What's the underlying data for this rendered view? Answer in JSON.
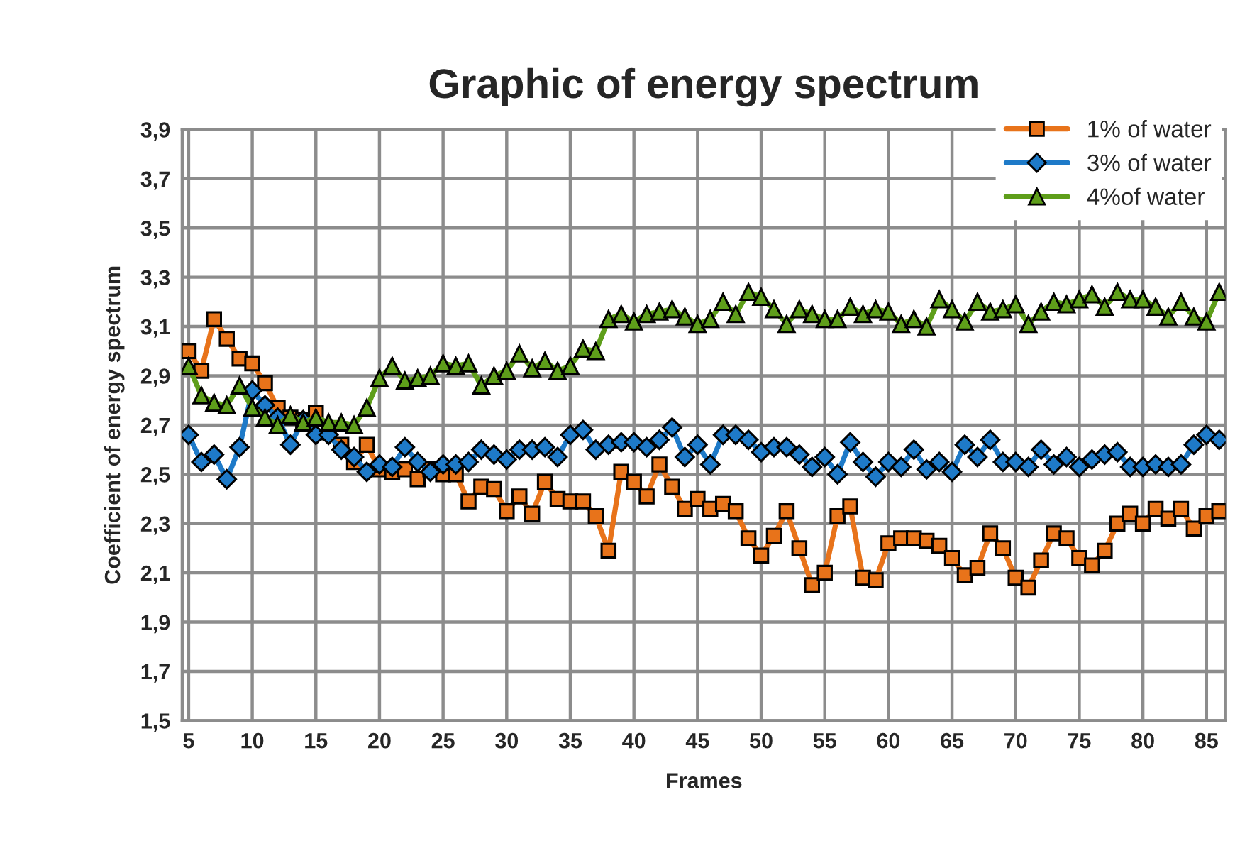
{
  "chart_data": {
    "type": "line",
    "title": "Graphic of energy spectrum",
    "xlabel": "Frames",
    "ylabel": "Coefficient of energy spectrum",
    "x": [
      5,
      6,
      7,
      8,
      9,
      10,
      11,
      12,
      13,
      14,
      15,
      16,
      17,
      18,
      19,
      20,
      21,
      22,
      23,
      24,
      25,
      26,
      27,
      28,
      29,
      30,
      31,
      32,
      33,
      34,
      35,
      36,
      37,
      38,
      39,
      40,
      41,
      42,
      43,
      44,
      45,
      46,
      47,
      48,
      49,
      50,
      51,
      52,
      53,
      54,
      55,
      56,
      57,
      58,
      59,
      60,
      61,
      62,
      63,
      64,
      65,
      66,
      67,
      68,
      69,
      70,
      71,
      72,
      73,
      74,
      75,
      76,
      77,
      78,
      79,
      80,
      81,
      82,
      83,
      84,
      85,
      86
    ],
    "series": [
      {
        "name": "1% of water",
        "color": "#e8731a",
        "marker": "square",
        "values": [
          3.0,
          2.92,
          3.13,
          3.05,
          2.97,
          2.95,
          2.87,
          2.77,
          2.73,
          2.72,
          2.75,
          2.67,
          2.62,
          2.55,
          2.62,
          2.52,
          2.51,
          2.52,
          2.48,
          2.52,
          2.5,
          2.5,
          2.39,
          2.45,
          2.44,
          2.35,
          2.41,
          2.34,
          2.47,
          2.4,
          2.39,
          2.39,
          2.33,
          2.19,
          2.51,
          2.47,
          2.41,
          2.54,
          2.45,
          2.36,
          2.4,
          2.36,
          2.38,
          2.35,
          2.24,
          2.17,
          2.25,
          2.35,
          2.2,
          2.05,
          2.1,
          2.33,
          2.37,
          2.08,
          2.07,
          2.22,
          2.24,
          2.24,
          2.23,
          2.21,
          2.16,
          2.09,
          2.12,
          2.26,
          2.2,
          2.08,
          2.04,
          2.15,
          2.26,
          2.24,
          2.16,
          2.13,
          2.19,
          2.3,
          2.34,
          2.3,
          2.36,
          2.32,
          2.36,
          2.28,
          2.33,
          2.35
        ]
      },
      {
        "name": "3% of water",
        "color": "#1e7ac8",
        "marker": "diamond",
        "values": [
          2.66,
          2.55,
          2.58,
          2.48,
          2.61,
          2.84,
          2.78,
          2.73,
          2.62,
          2.72,
          2.66,
          2.66,
          2.6,
          2.57,
          2.51,
          2.54,
          2.53,
          2.61,
          2.55,
          2.51,
          2.54,
          2.54,
          2.55,
          2.6,
          2.58,
          2.56,
          2.6,
          2.6,
          2.61,
          2.57,
          2.66,
          2.68,
          2.6,
          2.62,
          2.63,
          2.63,
          2.61,
          2.64,
          2.69,
          2.57,
          2.62,
          2.54,
          2.66,
          2.66,
          2.64,
          2.59,
          2.61,
          2.61,
          2.58,
          2.53,
          2.57,
          2.5,
          2.63,
          2.55,
          2.49,
          2.55,
          2.53,
          2.6,
          2.52,
          2.55,
          2.51,
          2.62,
          2.57,
          2.64,
          2.55,
          2.55,
          2.53,
          2.6,
          2.54,
          2.57,
          2.53,
          2.56,
          2.58,
          2.59,
          2.53,
          2.53,
          2.54,
          2.53,
          2.54,
          2.62,
          2.66,
          2.64
        ]
      },
      {
        "name": "4%of water",
        "color": "#5e9e1a",
        "marker": "triangle",
        "values": [
          2.94,
          2.82,
          2.79,
          2.78,
          2.86,
          2.77,
          2.73,
          2.7,
          2.74,
          2.71,
          2.73,
          2.71,
          2.71,
          2.7,
          2.77,
          2.89,
          2.94,
          2.88,
          2.89,
          2.9,
          2.95,
          2.94,
          2.95,
          2.86,
          2.9,
          2.92,
          2.99,
          2.93,
          2.96,
          2.92,
          2.94,
          3.01,
          3.0,
          3.13,
          3.15,
          3.12,
          3.15,
          3.16,
          3.17,
          3.14,
          3.11,
          3.13,
          3.2,
          3.15,
          3.24,
          3.22,
          3.17,
          3.11,
          3.17,
          3.15,
          3.13,
          3.13,
          3.18,
          3.15,
          3.17,
          3.16,
          3.11,
          3.13,
          3.1,
          3.21,
          3.17,
          3.12,
          3.2,
          3.16,
          3.17,
          3.19,
          3.11,
          3.16,
          3.2,
          3.19,
          3.21,
          3.23,
          3.18,
          3.24,
          3.21,
          3.21,
          3.18,
          3.14,
          3.2,
          3.14,
          3.12,
          3.24
        ]
      }
    ],
    "xlim": [
      4.5,
      86.5
    ],
    "xticks": [
      5,
      10,
      15,
      20,
      25,
      30,
      35,
      40,
      45,
      50,
      55,
      60,
      65,
      70,
      75,
      80,
      85
    ],
    "ylim": [
      1.5,
      3.9
    ],
    "yticks": [
      {
        "value": 1.5,
        "label": "1,5"
      },
      {
        "value": 1.7,
        "label": "1,7"
      },
      {
        "value": 1.9,
        "label": "1,9"
      },
      {
        "value": 2.1,
        "label": "2,1"
      },
      {
        "value": 2.3,
        "label": "2,3"
      },
      {
        "value": 2.5,
        "label": "2,5"
      },
      {
        "value": 2.7,
        "label": "2,7"
      },
      {
        "value": 2.9,
        "label": "2,9"
      },
      {
        "value": 3.1,
        "label": "3,1"
      },
      {
        "value": 3.3,
        "label": "3,3"
      },
      {
        "value": 3.5,
        "label": "3,5"
      },
      {
        "value": 3.7,
        "label": "3,7"
      },
      {
        "value": 3.9,
        "label": "3,9"
      }
    ],
    "grid": true,
    "legend": "top right",
    "line_style": "solid"
  }
}
